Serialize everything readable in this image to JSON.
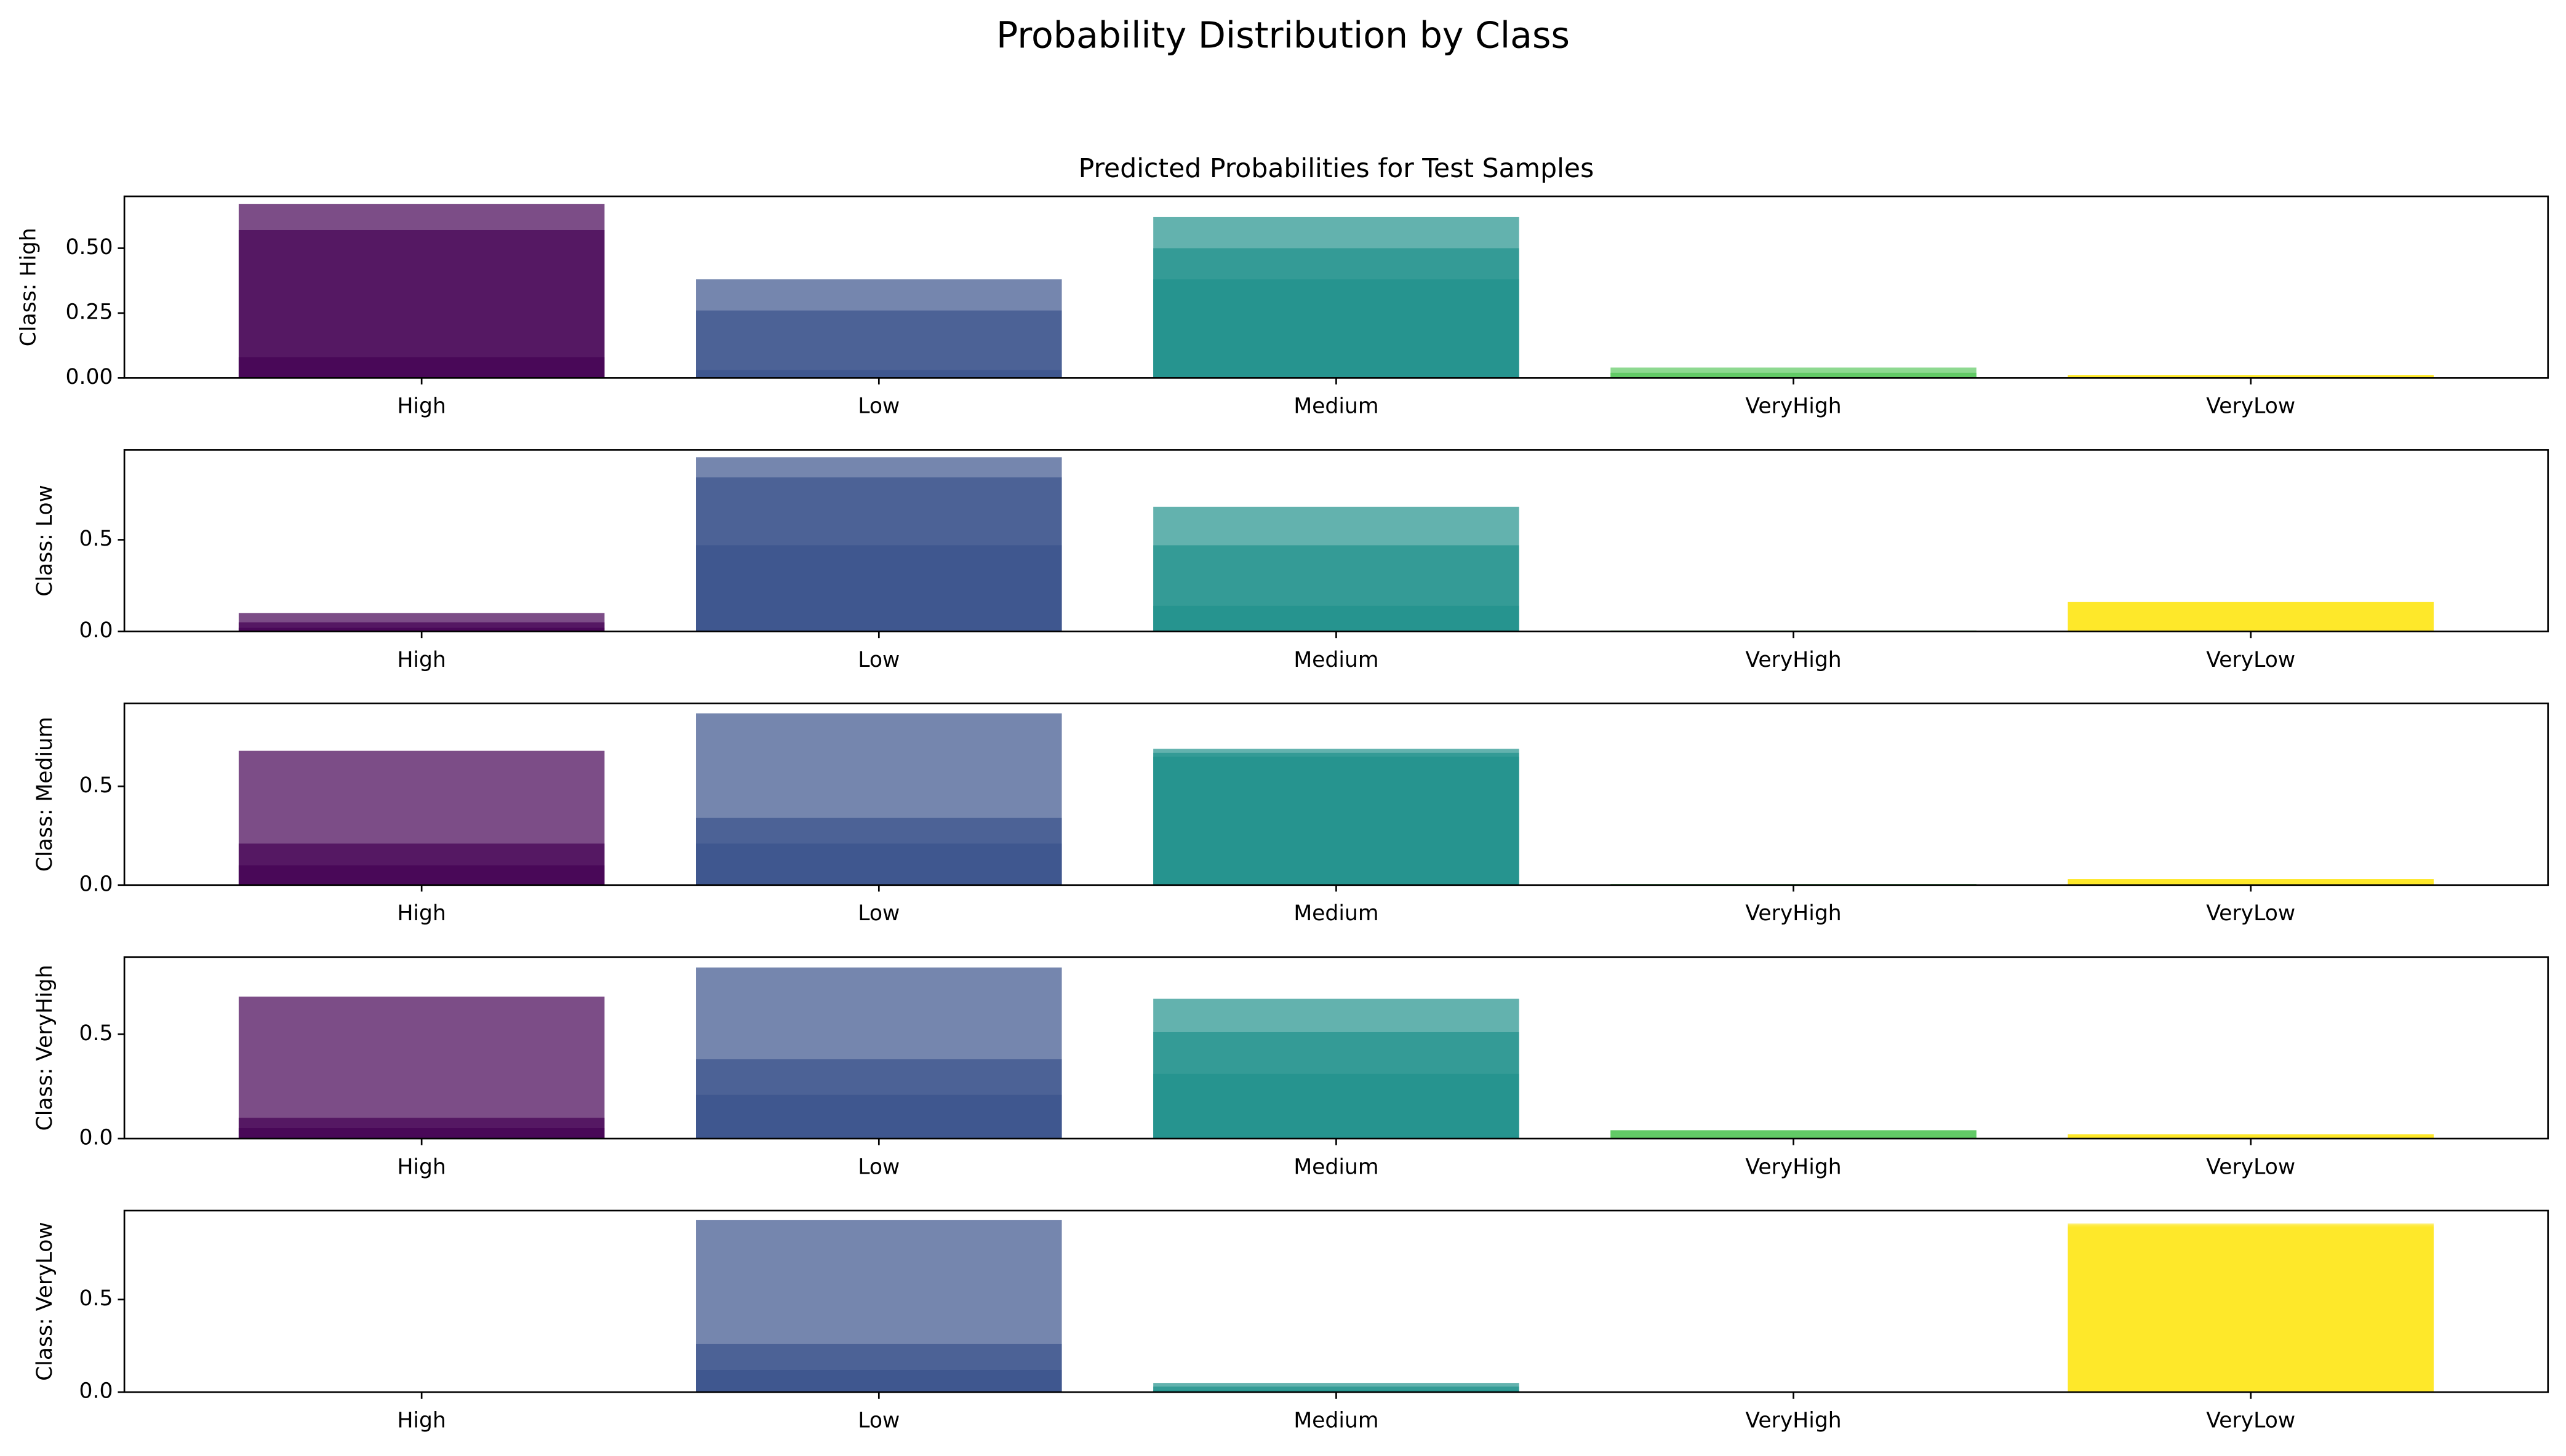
{
  "chart_data": {
    "type": "bar",
    "title": "Probability Distribution by Class",
    "categories": [
      "High",
      "Low",
      "Medium",
      "VeryHigh",
      "VeryLow"
    ],
    "colors": [
      "#440154",
      "#3b528b",
      "#21918c",
      "#5ec962",
      "#fde725"
    ],
    "panels": [
      {
        "title": "Predicted Probabilities for Test Samples",
        "ylabel": "Class: High",
        "ylim": [
          0,
          0.7
        ],
        "yticks": [
          {
            "value": 0,
            "label": "0.00"
          },
          {
            "value": 0.25,
            "label": "0.25"
          },
          {
            "value": 0.5,
            "label": "0.50"
          }
        ],
        "samples": [
          [
            0.67,
            0.38,
            0.62,
            0.04,
            0.01
          ],
          [
            0.57,
            0.26,
            0.5,
            0.02,
            0.01
          ],
          [
            0.08,
            0.03,
            0.38,
            0.02,
            0.01
          ]
        ]
      },
      {
        "ylabel": "Class: Low",
        "ylim": [
          0,
          0.99
        ],
        "yticks": [
          {
            "value": 0,
            "label": "0.0"
          },
          {
            "value": 0.5,
            "label": "0.5"
          }
        ],
        "samples": [
          [
            0.1,
            0.95,
            0.68,
            0.005,
            0.16
          ],
          [
            0.05,
            0.84,
            0.47,
            0.005,
            0.16
          ],
          [
            0.02,
            0.47,
            0.14,
            0.005,
            0.16
          ]
        ]
      },
      {
        "ylabel": "Class: Medium",
        "ylim": [
          0,
          0.92
        ],
        "yticks": [
          {
            "value": 0,
            "label": "0.0"
          },
          {
            "value": 0.5,
            "label": "0.5"
          }
        ],
        "samples": [
          [
            0.68,
            0.87,
            0.69,
            0.005,
            0.03
          ],
          [
            0.21,
            0.34,
            0.67,
            0.005,
            0.03
          ],
          [
            0.1,
            0.21,
            0.65,
            0.005,
            0.03
          ]
        ]
      },
      {
        "ylabel": "Class: VeryHigh",
        "ylim": [
          0,
          0.87
        ],
        "yticks": [
          {
            "value": 0,
            "label": "0.0"
          },
          {
            "value": 0.5,
            "label": "0.5"
          }
        ],
        "samples": [
          [
            0.68,
            0.82,
            0.67,
            0.04,
            0.02
          ],
          [
            0.1,
            0.38,
            0.51,
            0.04,
            0.02
          ],
          [
            0.05,
            0.21,
            0.31,
            0.04,
            0.02
          ]
        ]
      },
      {
        "ylabel": "Class: VeryLow",
        "ylim": [
          0,
          0.98
        ],
        "yticks": [
          {
            "value": 0,
            "label": "0.0"
          },
          {
            "value": 0.5,
            "label": "0.5"
          }
        ],
        "samples": [
          [
            0,
            0.93,
            0.05,
            0,
            0.91
          ],
          [
            0,
            0.26,
            0.03,
            0,
            0.9
          ],
          [
            0,
            0.12,
            0.01,
            0,
            0.89
          ]
        ]
      }
    ]
  }
}
